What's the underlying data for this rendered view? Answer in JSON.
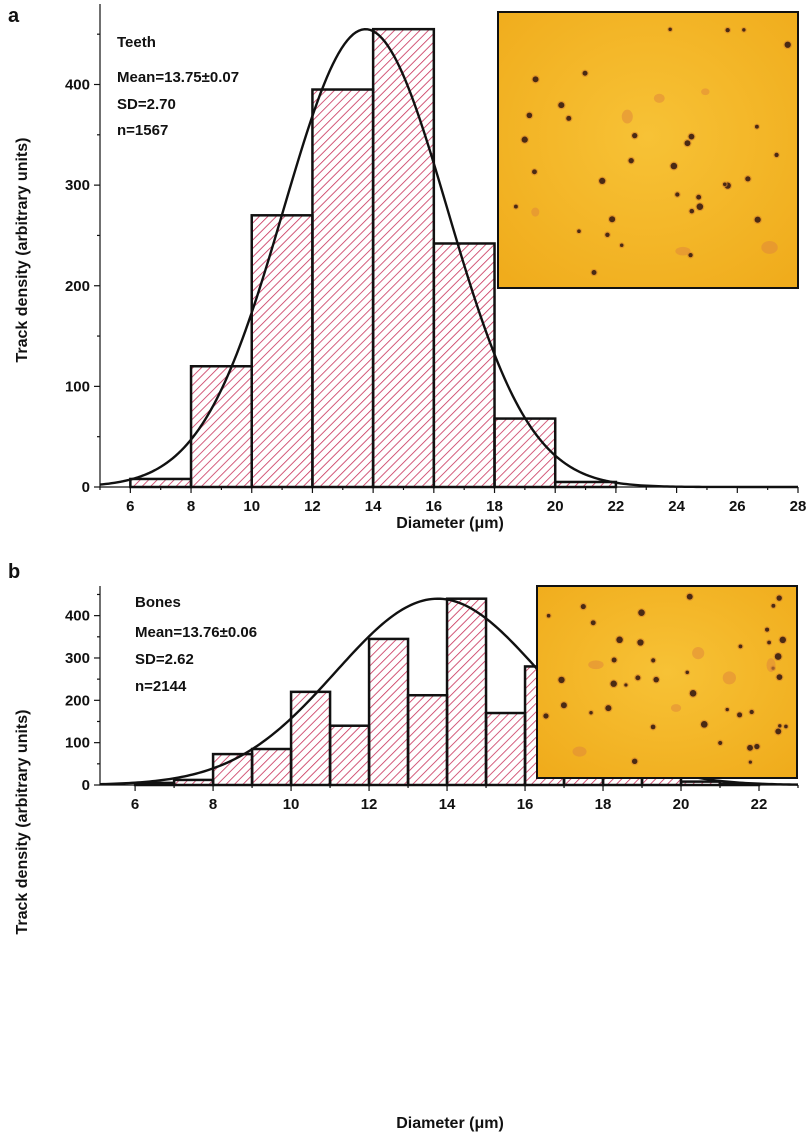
{
  "chart_data": [
    {
      "panel_label": "a",
      "type": "bar",
      "bin_edges": [
        6,
        8,
        10,
        12,
        14,
        16,
        18,
        20,
        22
      ],
      "values": [
        8,
        120,
        270,
        395,
        455,
        242,
        68,
        5
      ],
      "fit": {
        "mean": 13.75,
        "sd": 2.7,
        "peak": 455
      },
      "xlim": [
        5,
        28
      ],
      "ylim": [
        0,
        480
      ],
      "x_ticks": [
        6,
        8,
        10,
        12,
        14,
        16,
        18,
        20,
        22,
        24,
        26,
        28
      ],
      "y_ticks": [
        0,
        100,
        200,
        300,
        400
      ],
      "xlabel": "Diameter (μm)",
      "ylabel": "Track density (arbitrary units)",
      "annotation": {
        "title": "Teeth",
        "mean": "Mean=13.75±0.07",
        "sd": "SD=2.70",
        "n": "n=1567"
      },
      "inset_image": "micrograph",
      "bar_hatch_color": "#c8325a",
      "inset_color": "#f3b31e"
    },
    {
      "panel_label": "b",
      "type": "bar",
      "bin_edges": [
        6,
        7,
        8,
        9,
        10,
        11,
        12,
        13,
        14,
        15,
        16,
        17,
        18,
        19,
        20,
        21,
        22
      ],
      "values": [
        5,
        12,
        73,
        85,
        220,
        140,
        345,
        212,
        440,
        170,
        280,
        80,
        30,
        45,
        8,
        3
      ],
      "fit": {
        "mean": 13.76,
        "sd": 2.62,
        "peak": 440
      },
      "xlim": [
        5.1,
        23
      ],
      "ylim": [
        0,
        470
      ],
      "x_ticks": [
        6,
        8,
        10,
        12,
        14,
        16,
        18,
        20,
        22
      ],
      "y_ticks": [
        0,
        100,
        200,
        300,
        400
      ],
      "xlabel": "Diameter (μm)",
      "ylabel": "Track density (arbitrary units)",
      "annotation": {
        "title": "Bones",
        "mean": "Mean=13.76±0.06",
        "sd": "SD=2.62",
        "n": "n=2144"
      },
      "inset_image": "micrograph",
      "bar_hatch_color": "#c8325a",
      "inset_color": "#f3b31e"
    }
  ]
}
